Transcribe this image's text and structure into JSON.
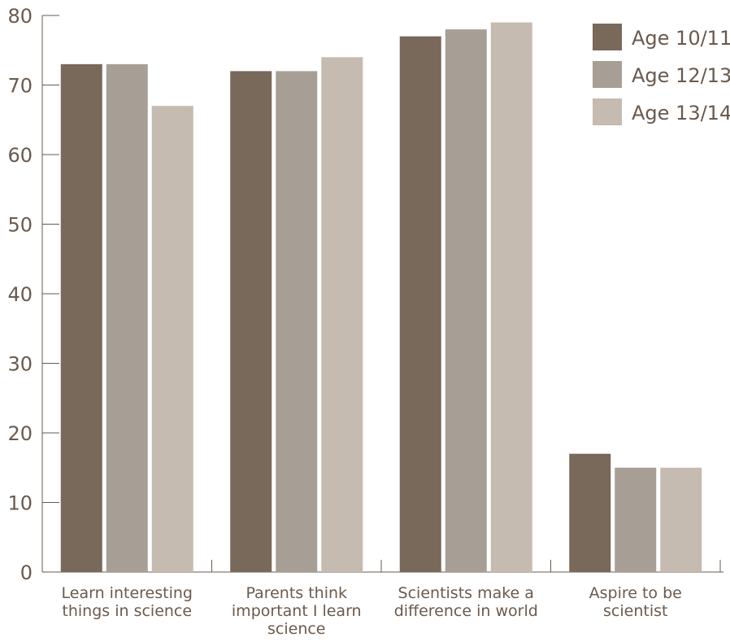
{
  "chart_data": {
    "type": "bar",
    "categories": [
      [
        "Learn interesting",
        "things in science"
      ],
      [
        "Parents think",
        "important I learn",
        "science"
      ],
      [
        "Scientists make a",
        "difference in world"
      ],
      [
        "Aspire to be",
        "scientist"
      ]
    ],
    "series": [
      {
        "name": "Age 10/11",
        "values": [
          73,
          72,
          77,
          17
        ],
        "color": "#79695a"
      },
      {
        "name": "Age 12/13",
        "values": [
          73,
          72,
          78,
          15
        ],
        "color": "#a79f95"
      },
      {
        "name": "Age 13/14",
        "values": [
          67,
          74,
          79,
          15
        ],
        "color": "#c5bbb1"
      }
    ],
    "ylim": [
      0,
      80
    ],
    "yticks": [
      0,
      10,
      20,
      30,
      40,
      50,
      60,
      70,
      80
    ],
    "title": "",
    "xlabel": "",
    "ylabel": "",
    "grid": false,
    "legend_position": "top-right",
    "axis_color": "#6a5a4d",
    "text_color": "#6a5a4d"
  }
}
